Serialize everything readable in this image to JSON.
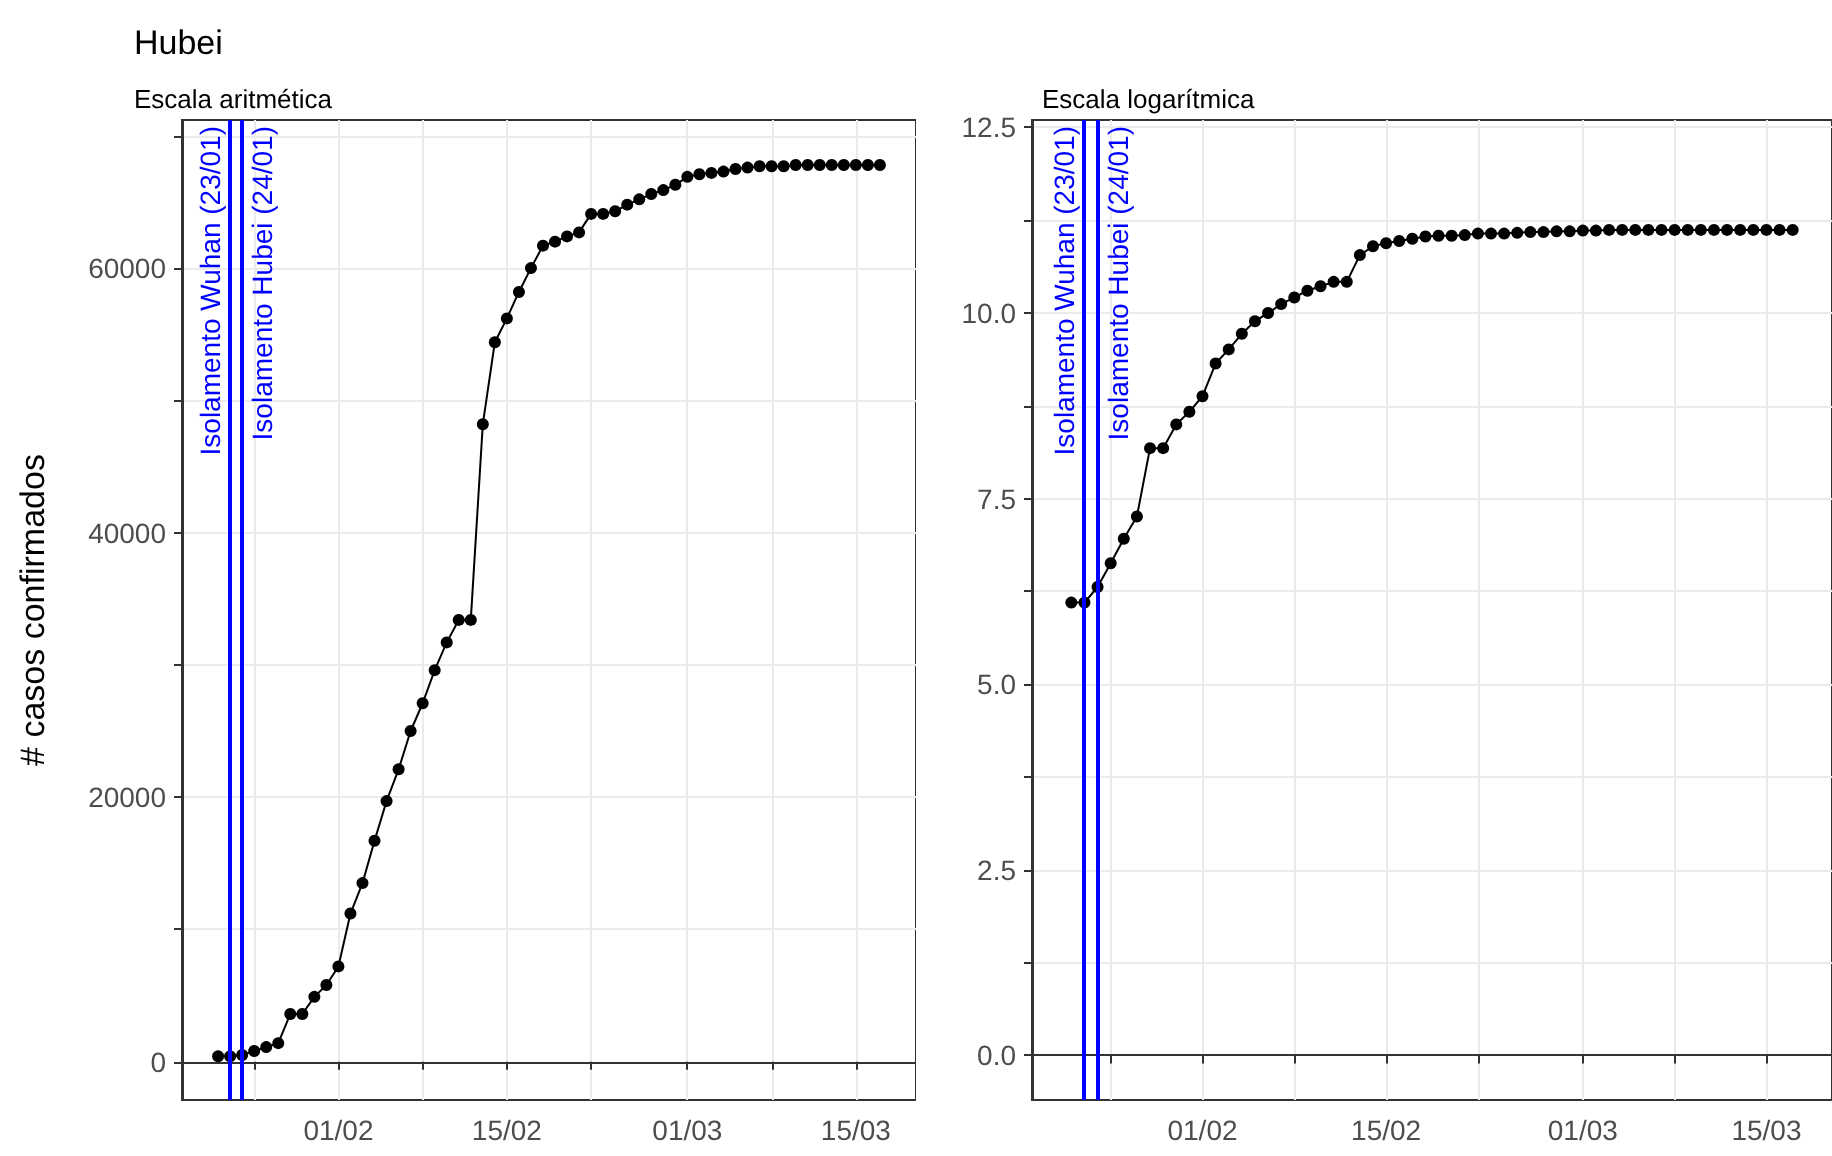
{
  "chart_data": [
    {
      "type": "line",
      "title": "Hubei",
      "subtitle": "Escala aritmética",
      "ylabel": "# casos confirmados",
      "x": [
        "--01-22",
        "--01-23",
        "--01-24",
        "--01-25",
        "--01-26",
        "--01-27",
        "--01-28",
        "--01-29",
        "--01-30",
        "--01-31",
        "--02-01",
        "--02-02",
        "--02-03",
        "--02-04",
        "--02-05",
        "--02-06",
        "--02-07",
        "--02-08",
        "--02-09",
        "--02-10",
        "--02-11",
        "--02-12",
        "--02-13",
        "--02-14",
        "--02-15",
        "--02-16",
        "--02-17",
        "--02-18",
        "--02-19",
        "--02-20",
        "--02-21",
        "--02-22",
        "--02-23",
        "--02-24",
        "--02-25",
        "--02-26",
        "--02-27",
        "--02-28",
        "--02-29",
        "--03-01",
        "--03-02",
        "--03-03",
        "--03-04",
        "--03-05",
        "--03-06",
        "--03-07",
        "--03-08",
        "--03-09",
        "--03-10",
        "--03-11",
        "--03-12",
        "--03-13",
        "--03-14",
        "--03-15",
        "--03-16",
        "--03-17"
      ],
      "series": [
        {
          "color": "#000000",
          "values": [
            400,
            400,
            500,
            800,
            1100,
            1400,
            3600,
            3600,
            4900,
            5800,
            7200,
            11200,
            13500,
            16700,
            19700,
            22100,
            25000,
            27100,
            29600,
            31700,
            33400,
            33400,
            48200,
            54400,
            56200,
            58200,
            60000,
            61700,
            62000,
            62400,
            62700,
            64100,
            64100,
            64300,
            64800,
            65200,
            65600,
            65900,
            66300,
            66900,
            67100,
            67200,
            67300,
            67500,
            67600,
            67700,
            67700,
            67700,
            67800,
            67800,
            67800,
            67800,
            67800,
            67800,
            67800,
            67800
          ]
        }
      ],
      "xlim": [
        "--01-19",
        "--03-20"
      ],
      "xticks": [
        {
          "value": "--01-25",
          "label": null
        },
        {
          "value": "--02-01",
          "label": "01/02"
        },
        {
          "value": "--02-08",
          "label": null
        },
        {
          "value": "--02-15",
          "label": "15/02"
        },
        {
          "value": "--02-22",
          "label": null
        },
        {
          "value": "--03-01",
          "label": "01/03"
        },
        {
          "value": "--03-08",
          "label": null
        },
        {
          "value": "--03-15",
          "label": "15/03"
        }
      ],
      "ylim": [
        -2900,
        71200
      ],
      "yticks": [
        0,
        {
          "value": 10000,
          "label": null
        },
        20000,
        {
          "value": 30000,
          "label": null
        },
        40000,
        {
          "value": 50000,
          "label": null
        },
        60000,
        {
          "value": 70000,
          "label": null
        }
      ],
      "ref_lines": [
        {
          "axis": "x",
          "value": "--01-23",
          "label": "Isolamento Wuhan (23/01)",
          "color": "#0000ff"
        },
        {
          "axis": "x",
          "value": "--01-24",
          "label": "Isolamento Hubei (24/01)",
          "color": "#0000ff"
        }
      ],
      "grid": true,
      "marker": "circle",
      "line_style": "solid"
    },
    {
      "type": "line",
      "subtitle": "Escala logarítmica",
      "x": [
        "--01-22",
        "--01-23",
        "--01-24",
        "--01-25",
        "--01-26",
        "--01-27",
        "--01-28",
        "--01-29",
        "--01-30",
        "--01-31",
        "--02-01",
        "--02-02",
        "--02-03",
        "--02-04",
        "--02-05",
        "--02-06",
        "--02-07",
        "--02-08",
        "--02-09",
        "--02-10",
        "--02-11",
        "--02-12",
        "--02-13",
        "--02-14",
        "--02-15",
        "--02-16",
        "--02-17",
        "--02-18",
        "--02-19",
        "--02-20",
        "--02-21",
        "--02-22",
        "--02-23",
        "--02-24",
        "--02-25",
        "--02-26",
        "--02-27",
        "--02-28",
        "--02-29",
        "--03-01",
        "--03-02",
        "--03-03",
        "--03-04",
        "--03-05",
        "--03-06",
        "--03-07",
        "--03-08",
        "--03-09",
        "--03-10",
        "--03-11",
        "--03-12",
        "--03-13",
        "--03-14",
        "--03-15",
        "--03-16",
        "--03-17"
      ],
      "series": [
        {
          "color": "#000000",
          "values": [
            6.1,
            6.1,
            6.31,
            6.63,
            6.96,
            7.26,
            8.18,
            8.18,
            8.5,
            8.67,
            8.88,
            9.32,
            9.51,
            9.72,
            9.89,
            10.0,
            10.12,
            10.21,
            10.3,
            10.36,
            10.42,
            10.42,
            10.78,
            10.9,
            10.94,
            10.97,
            11.0,
            11.03,
            11.04,
            11.04,
            11.05,
            11.07,
            11.07,
            11.07,
            11.08,
            11.09,
            11.09,
            11.1,
            11.1,
            11.11,
            11.11,
            11.12,
            11.12,
            11.12,
            11.12,
            11.12,
            11.12,
            11.12,
            11.12,
            11.12,
            11.12,
            11.12,
            11.12,
            11.12,
            11.12,
            11.12
          ]
        }
      ],
      "xlim": [
        "--01-19",
        "--03-20"
      ],
      "xticks": [
        {
          "value": "--01-25",
          "label": null
        },
        {
          "value": "--02-01",
          "label": "01/02"
        },
        {
          "value": "--02-08",
          "label": null
        },
        {
          "value": "--02-15",
          "label": "15/02"
        },
        {
          "value": "--02-22",
          "label": null
        },
        {
          "value": "--03-01",
          "label": "01/03"
        },
        {
          "value": "--03-08",
          "label": null
        },
        {
          "value": "--03-15",
          "label": "15/03"
        }
      ],
      "ylim": [
        -0.6,
        12.6
      ],
      "yticks": [
        {
          "value": 0,
          "label": "0.0"
        },
        {
          "value": 1.25,
          "label": null
        },
        {
          "value": 2.5,
          "label": "2.5"
        },
        {
          "value": 3.75,
          "label": null
        },
        {
          "value": 5,
          "label": "5.0"
        },
        {
          "value": 6.25,
          "label": null
        },
        {
          "value": 7.5,
          "label": "7.5"
        },
        {
          "value": 8.75,
          "label": null
        },
        {
          "value": 10,
          "label": "10.0"
        },
        {
          "value": 11.25,
          "label": null
        },
        {
          "value": 12.5,
          "label": "12.5"
        }
      ],
      "ref_lines": [
        {
          "axis": "x",
          "value": "--01-23",
          "label": "Isolamento Wuhan (23/01)",
          "color": "#0000ff"
        },
        {
          "axis": "x",
          "value": "--01-24",
          "label": "Isolamento Hubei (24/01)",
          "color": "#0000ff"
        }
      ],
      "grid": true,
      "marker": "circle",
      "line_style": "solid"
    }
  ]
}
